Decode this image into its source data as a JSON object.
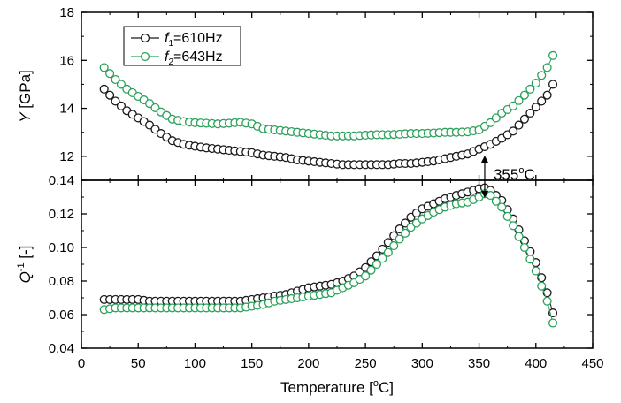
{
  "chart_data": [
    {
      "type": "scatter",
      "ylabel_var": "Y",
      "ylabel_unit": "[GPa]",
      "ylim": [
        11,
        18
      ],
      "yticks": [
        "12",
        "14",
        "16",
        "18"
      ],
      "xlim": [
        0,
        450
      ],
      "legend": {
        "placement": "top-left",
        "entries": [
          {
            "var": "f",
            "sub": "1",
            "text": "=610Hz"
          },
          {
            "var": "f",
            "sub": "2",
            "text": "=643Hz"
          }
        ]
      },
      "series": [
        {
          "name": "f1=610Hz",
          "color": "#1a1a1a",
          "points": [
            [
              20,
              14.8
            ],
            [
              25,
              14.55
            ],
            [
              30,
              14.3
            ],
            [
              40,
              13.9
            ],
            [
              50,
              13.6
            ],
            [
              60,
              13.3
            ],
            [
              70,
              12.95
            ],
            [
              80,
              12.65
            ],
            [
              90,
              12.5
            ],
            [
              100,
              12.42
            ],
            [
              110,
              12.35
            ],
            [
              120,
              12.3
            ],
            [
              130,
              12.25
            ],
            [
              140,
              12.2
            ],
            [
              150,
              12.15
            ],
            [
              160,
              12.05
            ],
            [
              170,
              12.0
            ],
            [
              180,
              11.95
            ],
            [
              190,
              11.85
            ],
            [
              200,
              11.8
            ],
            [
              210,
              11.75
            ],
            [
              220,
              11.7
            ],
            [
              230,
              11.65
            ],
            [
              240,
              11.65
            ],
            [
              250,
              11.65
            ],
            [
              260,
              11.65
            ],
            [
              270,
              11.65
            ],
            [
              280,
              11.7
            ],
            [
              290,
              11.7
            ],
            [
              300,
              11.75
            ],
            [
              310,
              11.8
            ],
            [
              320,
              11.9
            ],
            [
              330,
              12.0
            ],
            [
              340,
              12.1
            ],
            [
              350,
              12.3
            ],
            [
              360,
              12.5
            ],
            [
              370,
              12.75
            ],
            [
              380,
              13.05
            ],
            [
              390,
              13.55
            ],
            [
              400,
              14.05
            ],
            [
              410,
              14.55
            ],
            [
              415,
              15.0
            ]
          ]
        },
        {
          "name": "f2=643Hz",
          "color": "#2aa15a",
          "points": [
            [
              20,
              15.7
            ],
            [
              25,
              15.45
            ],
            [
              30,
              15.2
            ],
            [
              40,
              14.8
            ],
            [
              50,
              14.5
            ],
            [
              60,
              14.2
            ],
            [
              70,
              13.85
            ],
            [
              80,
              13.55
            ],
            [
              90,
              13.45
            ],
            [
              100,
              13.4
            ],
            [
              110,
              13.38
            ],
            [
              120,
              13.35
            ],
            [
              130,
              13.38
            ],
            [
              140,
              13.42
            ],
            [
              150,
              13.35
            ],
            [
              160,
              13.15
            ],
            [
              170,
              13.1
            ],
            [
              180,
              13.05
            ],
            [
              190,
              13.0
            ],
            [
              200,
              12.95
            ],
            [
              210,
              12.9
            ],
            [
              220,
              12.85
            ],
            [
              230,
              12.85
            ],
            [
              240,
              12.85
            ],
            [
              250,
              12.88
            ],
            [
              260,
              12.9
            ],
            [
              270,
              12.9
            ],
            [
              280,
              12.92
            ],
            [
              290,
              12.95
            ],
            [
              300,
              12.95
            ],
            [
              310,
              12.97
            ],
            [
              320,
              13.0
            ],
            [
              330,
              13.0
            ],
            [
              340,
              13.02
            ],
            [
              350,
              13.1
            ],
            [
              360,
              13.4
            ],
            [
              370,
              13.8
            ],
            [
              380,
              14.1
            ],
            [
              390,
              14.55
            ],
            [
              400,
              15.05
            ],
            [
              410,
              15.7
            ],
            [
              415,
              16.2
            ]
          ]
        }
      ]
    },
    {
      "type": "scatter",
      "ylabel_var": "Q",
      "ylabel_sup": "-1",
      "ylabel_unit": "[-]",
      "ylim": [
        0.04,
        0.14
      ],
      "yticks": [
        "0.04",
        "0.06",
        "0.08",
        "0.10",
        "0.12",
        "0.14"
      ],
      "xlim": [
        0,
        450
      ],
      "xticks": [
        "0",
        "50",
        "100",
        "150",
        "200",
        "250",
        "300",
        "350",
        "400",
        "450"
      ],
      "xlabel_text": "Temperature",
      "xlabel_unit": "[",
      "xlabel_sup": "o",
      "xlabel_unit_end": "C]",
      "annotation": {
        "text": "355",
        "sup": "o",
        "unit": "C",
        "x": 355
      },
      "series": [
        {
          "name": "f1=610Hz",
          "color": "#1a1a1a",
          "points": [
            [
              20,
              0.069
            ],
            [
              30,
              0.069
            ],
            [
              40,
              0.069
            ],
            [
              50,
              0.069
            ],
            [
              60,
              0.068
            ],
            [
              70,
              0.068
            ],
            [
              80,
              0.068
            ],
            [
              90,
              0.068
            ],
            [
              100,
              0.068
            ],
            [
              110,
              0.068
            ],
            [
              120,
              0.068
            ],
            [
              130,
              0.068
            ],
            [
              140,
              0.068
            ],
            [
              150,
              0.069
            ],
            [
              160,
              0.07
            ],
            [
              170,
              0.071
            ],
            [
              180,
              0.072
            ],
            [
              190,
              0.074
            ],
            [
              200,
              0.076
            ],
            [
              210,
              0.077
            ],
            [
              220,
              0.078
            ],
            [
              230,
              0.08
            ],
            [
              240,
              0.083
            ],
            [
              250,
              0.088
            ],
            [
              260,
              0.095
            ],
            [
              270,
              0.103
            ],
            [
              280,
              0.111
            ],
            [
              290,
              0.118
            ],
            [
              300,
              0.123
            ],
            [
              310,
              0.126
            ],
            [
              320,
              0.129
            ],
            [
              330,
              0.131
            ],
            [
              340,
              0.133
            ],
            [
              350,
              0.135
            ],
            [
              355,
              0.1355
            ],
            [
              360,
              0.134
            ],
            [
              370,
              0.128
            ],
            [
              380,
              0.117
            ],
            [
              390,
              0.104
            ],
            [
              400,
              0.091
            ],
            [
              410,
              0.073
            ],
            [
              415,
              0.061
            ]
          ]
        },
        {
          "name": "f2=643Hz",
          "color": "#2aa15a",
          "points": [
            [
              20,
              0.063
            ],
            [
              30,
              0.064
            ],
            [
              40,
              0.064
            ],
            [
              50,
              0.064
            ],
            [
              60,
              0.064
            ],
            [
              70,
              0.064
            ],
            [
              80,
              0.064
            ],
            [
              90,
              0.064
            ],
            [
              100,
              0.064
            ],
            [
              110,
              0.064
            ],
            [
              120,
              0.064
            ],
            [
              130,
              0.064
            ],
            [
              140,
              0.064
            ],
            [
              150,
              0.065
            ],
            [
              160,
              0.066
            ],
            [
              170,
              0.068
            ],
            [
              180,
              0.069
            ],
            [
              190,
              0.07
            ],
            [
              200,
              0.071
            ],
            [
              210,
              0.072
            ],
            [
              220,
              0.073
            ],
            [
              230,
              0.076
            ],
            [
              240,
              0.079
            ],
            [
              250,
              0.083
            ],
            [
              260,
              0.09
            ],
            [
              270,
              0.097
            ],
            [
              280,
              0.105
            ],
            [
              290,
              0.112
            ],
            [
              300,
              0.117
            ],
            [
              310,
              0.121
            ],
            [
              320,
              0.124
            ],
            [
              330,
              0.126
            ],
            [
              340,
              0.127
            ],
            [
              350,
              0.13
            ],
            [
              355,
              0.132
            ],
            [
              360,
              0.131
            ],
            [
              370,
              0.124
            ],
            [
              380,
              0.113
            ],
            [
              390,
              0.1
            ],
            [
              400,
              0.086
            ],
            [
              410,
              0.068
            ],
            [
              415,
              0.055
            ]
          ]
        }
      ]
    }
  ]
}
